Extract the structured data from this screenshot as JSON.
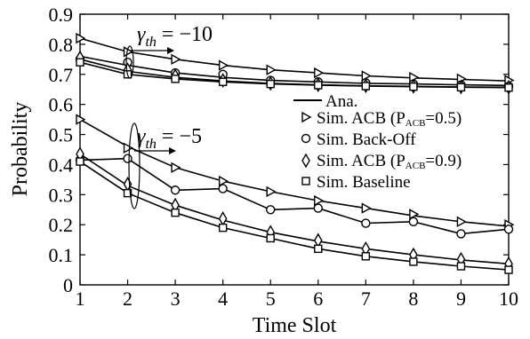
{
  "chart_data": {
    "type": "line",
    "xlabel": "Time Slot",
    "ylabel": "Probability",
    "x": [
      1,
      2,
      3,
      4,
      5,
      6,
      7,
      8,
      9,
      10
    ],
    "xlim": [
      1,
      10
    ],
    "ylim": [
      0,
      0.9
    ],
    "x_ticks": [
      "1",
      "2",
      "3",
      "4",
      "5",
      "6",
      "7",
      "8",
      "9",
      "10"
    ],
    "y_ticks": [
      "0",
      "0.1",
      "0.2",
      "0.3",
      "0.4",
      "0.5",
      "0.6",
      "0.7",
      "0.8",
      "0.9"
    ],
    "grid": false,
    "legend_position": "center-right",
    "legend": {
      "ana": "Ana.",
      "acb05_prefix": "Sim. ACB (P",
      "acb05_sub": "ACB",
      "acb05_suffix": "=0.5)",
      "backoff": "Sim. Back-Off",
      "acb09_prefix": "Sim. ACB (P",
      "acb09_sub": "ACB",
      "acb09_suffix": "=0.9)",
      "baseline": "Sim. Baseline"
    },
    "annotations": [
      {
        "symbol": "γ",
        "sub": "th",
        "text": " = −10"
      },
      {
        "symbol": "γ",
        "sub": "th",
        "text": " = −5"
      }
    ],
    "groups": [
      {
        "series": [
          {
            "marker": "triangle-right",
            "analytic": [
              0.82,
              0.775,
              0.75,
              0.73,
              0.715,
              0.705,
              0.695,
              0.688,
              0.683,
              0.678
            ],
            "simulated": [
              0.82,
              0.775,
              0.75,
              0.73,
              0.715,
              0.705,
              0.695,
              0.69,
              0.685,
              0.68
            ]
          },
          {
            "marker": "circle",
            "analytic": [
              0.76,
              0.73,
              0.705,
              0.69,
              0.68,
              0.675,
              0.67,
              0.668,
              0.665,
              0.663
            ],
            "simulated": [
              0.75,
              0.74,
              0.705,
              0.7,
              0.68,
              0.675,
              0.672,
              0.668,
              0.665,
              0.66
            ]
          },
          {
            "marker": "diamond",
            "analytic": [
              0.75,
              0.71,
              0.69,
              0.678,
              0.67,
              0.665,
              0.662,
              0.66,
              0.658,
              0.657
            ],
            "simulated": [
              0.755,
              0.715,
              0.695,
              0.68,
              0.67,
              0.665,
              0.662,
              0.66,
              0.658,
              0.657
            ]
          },
          {
            "marker": "square",
            "analytic": [
              0.74,
              0.7,
              0.685,
              0.675,
              0.668,
              0.664,
              0.661,
              0.659,
              0.657,
              0.656
            ],
            "simulated": [
              0.74,
              0.7,
              0.685,
              0.675,
              0.668,
              0.664,
              0.661,
              0.659,
              0.657,
              0.656
            ]
          }
        ]
      },
      {
        "series": [
          {
            "marker": "triangle-right",
            "analytic": [
              0.55,
              0.46,
              0.39,
              0.345,
              0.31,
              0.28,
              0.255,
              0.23,
              0.21,
              0.195
            ],
            "simulated": [
              0.55,
              0.455,
              0.39,
              0.345,
              0.31,
              0.28,
              0.255,
              0.235,
              0.21,
              0.2
            ]
          },
          {
            "marker": "circle",
            "analytic": [
              0.415,
              0.42,
              0.315,
              0.32,
              0.25,
              0.255,
              0.205,
              0.21,
              0.17,
              0.185
            ],
            "simulated": [
              0.415,
              0.42,
              0.315,
              0.32,
              0.25,
              0.255,
              0.205,
              0.21,
              0.17,
              0.185
            ]
          },
          {
            "marker": "diamond",
            "analytic": [
              0.435,
              0.33,
              0.265,
              0.215,
              0.175,
              0.145,
              0.12,
              0.1,
              0.083,
              0.07
            ],
            "simulated": [
              0.435,
              0.335,
              0.265,
              0.22,
              0.175,
              0.148,
              0.12,
              0.1,
              0.085,
              0.07
            ]
          },
          {
            "marker": "square",
            "analytic": [
              0.41,
              0.305,
              0.24,
              0.19,
              0.155,
              0.12,
              0.095,
              0.077,
              0.062,
              0.05
            ],
            "simulated": [
              0.41,
              0.305,
              0.24,
              0.19,
              0.155,
              0.12,
              0.095,
              0.077,
              0.062,
              0.05
            ]
          }
        ]
      }
    ]
  }
}
